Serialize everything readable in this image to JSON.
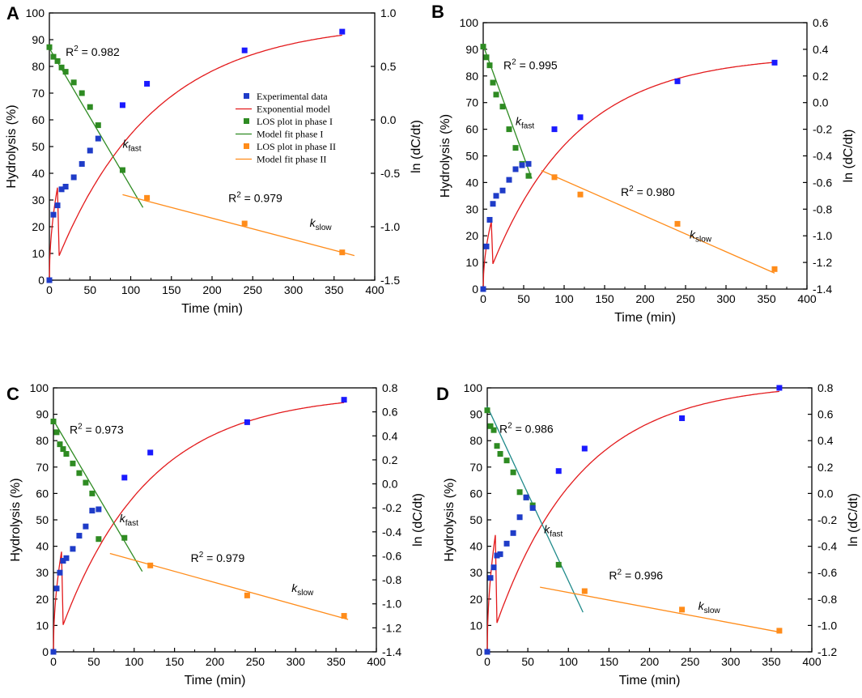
{
  "figure": {
    "colors": {
      "experimental": "#1f3cc8",
      "experimental_bright": "#1a1aff",
      "exponential_model": "#e31a1c",
      "los_phase1": "#2e8b22",
      "fit_phase1": "#2e8b22",
      "fit_phase1_teal": "#1f8a8a",
      "los_phase2": "#ff8c1a",
      "fit_phase2": "#ff8c1a"
    },
    "legend": [
      {
        "key": "experimental",
        "label": "Experimental data",
        "kind": "marker"
      },
      {
        "key": "exponential_model",
        "label": "Exponential model",
        "kind": "line"
      },
      {
        "key": "los_phase1",
        "label": "LOS plot in phase I",
        "kind": "marker"
      },
      {
        "key": "fit_phase1",
        "label": "Model fit phase I",
        "kind": "line"
      },
      {
        "key": "los_phase2",
        "label": "LOS plot in phase II",
        "kind": "marker"
      },
      {
        "key": "fit_phase2",
        "label": "Model fit phase II",
        "kind": "line"
      }
    ]
  },
  "chart_data": [
    {
      "panel": "A",
      "type": "scatter",
      "xlabel": "Time (min)",
      "ylabel": "Hydrolysis (%)",
      "y2label": "ln (dC/dt)",
      "xlim": [
        0,
        400
      ],
      "xticks": [
        0,
        50,
        100,
        150,
        200,
        250,
        300,
        350,
        400
      ],
      "ylim": [
        0,
        100
      ],
      "yticks": [
        0,
        10,
        20,
        30,
        40,
        50,
        60,
        70,
        80,
        90,
        100
      ],
      "y2lim": [
        -1.5,
        1.0
      ],
      "y2ticks": [
        -1.5,
        -1.0,
        -0.5,
        0.0,
        0.5,
        1.0
      ],
      "y2tick_labels": [
        "-1.5",
        "-1.0",
        "-0.5",
        "0.0",
        "0.5",
        "1.0"
      ],
      "experimental": {
        "x": [
          0,
          5,
          10,
          15,
          20,
          30,
          40,
          50,
          60,
          90,
          120,
          240,
          360
        ],
        "y": [
          0,
          24.5,
          28,
          34,
          35,
          38.5,
          43.5,
          48.5,
          53,
          65.5,
          73.5,
          86,
          93
        ]
      },
      "exponential_model": {
        "ymax": 96.5,
        "k": 0.00833
      },
      "los_phase1": {
        "x": [
          0,
          5,
          10,
          15,
          20,
          30,
          40,
          50,
          60,
          90
        ],
        "y": [
          0.68,
          0.59,
          0.55,
          0.49,
          0.45,
          0.35,
          0.25,
          0.12,
          -0.05,
          -0.47
        ]
      },
      "fit_phase1": {
        "x": [
          0,
          115
        ],
        "y": [
          0.67,
          -0.82
        ]
      },
      "los_phase2": {
        "x": [
          120,
          240,
          360
        ],
        "y": [
          -0.73,
          -0.97,
          -1.24
        ]
      },
      "fit_phase2": {
        "x": [
          90,
          375
        ],
        "y": [
          -0.7,
          -1.27
        ]
      },
      "r2_phase1": {
        "text": "R² = 0.982",
        "x": 20,
        "y": 0.6
      },
      "r2_phase2": {
        "text": "R² = 0.979",
        "x": 220,
        "y": -0.77
      },
      "k_fast": {
        "main": "k",
        "sub": "fast",
        "x": 90,
        "y": -0.26
      },
      "k_slow": {
        "main": "k",
        "sub": "slow",
        "x": 320,
        "y": -1.0
      },
      "fit1_color": "fit_phase1",
      "show_legend": true
    },
    {
      "panel": "B",
      "type": "scatter",
      "xlabel": "Time (min)",
      "ylabel": "Hydrolysis (%)",
      "y2label": "ln (dC/dt)",
      "xlim": [
        0,
        400
      ],
      "xticks": [
        0,
        50,
        100,
        150,
        200,
        250,
        300,
        350,
        400
      ],
      "ylim": [
        0,
        100
      ],
      "yticks": [
        0,
        10,
        20,
        30,
        40,
        50,
        60,
        70,
        80,
        90,
        100
      ],
      "y2lim": [
        -1.4,
        0.6
      ],
      "y2ticks": [
        -1.4,
        -1.2,
        -1.0,
        -0.8,
        -0.6,
        -0.4,
        -0.2,
        0.0,
        0.2,
        0.4,
        0.6
      ],
      "y2tick_labels": [
        "-1.4",
        "-1.2",
        "-1.0",
        "-0.8",
        "-0.6",
        "-0.4",
        "-0.2",
        "0.0",
        "0.2",
        "0.4",
        "0.6"
      ],
      "experimental": {
        "x": [
          0,
          4,
          8,
          12,
          16,
          24,
          32,
          40,
          48,
          56,
          88,
          120,
          240,
          360
        ],
        "y": [
          0,
          16,
          26,
          32,
          35,
          37,
          41,
          45,
          46.5,
          47,
          60,
          64.5,
          78,
          85
        ]
      },
      "exponential_model": {
        "ymax": 88,
        "k": 0.0095
      },
      "los_phase1": {
        "x": [
          0,
          4,
          8,
          12,
          16,
          24,
          32,
          40,
          48,
          56
        ],
        "y": [
          0.42,
          0.34,
          0.28,
          0.15,
          0.06,
          -0.03,
          -0.2,
          -0.34,
          -0.46,
          -0.55
        ]
      },
      "fit_phase1": {
        "x": [
          0,
          60
        ],
        "y": [
          0.43,
          -0.57
        ]
      },
      "los_phase2": {
        "x": [
          88,
          120,
          240,
          360
        ],
        "y": [
          -0.56,
          -0.69,
          -0.91,
          -1.25
        ]
      },
      "fit_phase2": {
        "x": [
          72,
          360
        ],
        "y": [
          -0.51,
          -1.28
        ]
      },
      "r2_phase1": {
        "text": "R² = 0.995",
        "x": 25,
        "y": 0.25
      },
      "r2_phase2": {
        "text": "R² = 0.980",
        "x": 170,
        "y": -0.7
      },
      "k_fast": {
        "main": "k",
        "sub": "fast",
        "x": 40,
        "y": -0.17
      },
      "k_slow": {
        "main": "k",
        "sub": "slow",
        "x": 255,
        "y": -1.02
      },
      "fit1_color": "fit_phase1",
      "show_legend": false
    },
    {
      "panel": "C",
      "type": "scatter",
      "xlabel": "Time (min)",
      "ylabel": "Hydrolysis (%)",
      "y2label": "ln (dC/dt)",
      "xlim": [
        0,
        400
      ],
      "xticks": [
        0,
        50,
        100,
        150,
        200,
        250,
        300,
        350,
        400
      ],
      "ylim": [
        0,
        100
      ],
      "yticks": [
        0,
        10,
        20,
        30,
        40,
        50,
        60,
        70,
        80,
        90,
        100
      ],
      "y2lim": [
        -1.4,
        0.8
      ],
      "y2ticks": [
        -1.4,
        -1.2,
        -1.0,
        -0.8,
        -0.6,
        -0.4,
        -0.2,
        0.0,
        0.2,
        0.4,
        0.6,
        0.8
      ],
      "y2tick_labels": [
        "-1.4",
        "-1.2",
        "-1.0",
        "-0.8",
        "-0.6",
        "-0.4",
        "-0.2",
        "0.0",
        "0.2",
        "0.4",
        "0.6",
        "0.8"
      ],
      "experimental": {
        "x": [
          0,
          4,
          8,
          12,
          16,
          24,
          32,
          40,
          48,
          56,
          88,
          120,
          240,
          360
        ],
        "y": [
          0,
          24,
          30,
          34.5,
          35.5,
          39,
          44,
          47.5,
          53.5,
          54,
          66,
          75.5,
          87,
          95.5
        ]
      },
      "exponential_model": {
        "ymax": 98,
        "k": 0.0092
      },
      "los_phase1": {
        "x": [
          0,
          4,
          8,
          12,
          16,
          24,
          32,
          40,
          48,
          56,
          88
        ],
        "y": [
          0.52,
          0.43,
          0.33,
          0.29,
          0.25,
          0.17,
          0.09,
          0.01,
          -0.08,
          -0.46,
          -0.45
        ]
      },
      "fit_phase1": {
        "x": [
          0,
          110
        ],
        "y": [
          0.53,
          -0.73
        ]
      },
      "los_phase2": {
        "x": [
          120,
          240,
          360
        ],
        "y": [
          -0.68,
          -0.93,
          -1.1
        ]
      },
      "fit_phase2": {
        "x": [
          70,
          365
        ],
        "y": [
          -0.58,
          -1.13
        ]
      },
      "r2_phase1": {
        "text": "R² = 0.973",
        "x": 20,
        "y": 0.42
      },
      "r2_phase2": {
        "text": "R² = 0.979",
        "x": 170,
        "y": -0.65
      },
      "k_fast": {
        "main": "k",
        "sub": "fast",
        "x": 82,
        "y": -0.32
      },
      "k_slow": {
        "main": "k",
        "sub": "slow",
        "x": 295,
        "y": -0.9
      },
      "fit1_color": "fit_phase1",
      "show_legend": false
    },
    {
      "panel": "D",
      "type": "scatter",
      "xlabel": "Time (min)",
      "ylabel": "Hydrolysis (%)",
      "y2label": "ln (dC/dt)",
      "xlim": [
        0,
        400
      ],
      "xticks": [
        0,
        50,
        100,
        150,
        200,
        250,
        300,
        350,
        400
      ],
      "ylim": [
        0,
        100
      ],
      "yticks": [
        0,
        10,
        20,
        30,
        40,
        50,
        60,
        70,
        80,
        90,
        100
      ],
      "y2lim": [
        -1.2,
        0.8
      ],
      "y2ticks": [
        -1.2,
        -1.0,
        -0.8,
        -0.6,
        -0.4,
        -0.2,
        0.0,
        0.2,
        0.4,
        0.6,
        0.8
      ],
      "y2tick_labels": [
        "-1.2",
        "-1.0",
        "-0.8",
        "-0.6",
        "-0.4",
        "-0.2",
        "0.0",
        "0.2",
        "0.4",
        "0.6",
        "0.8"
      ],
      "experimental": {
        "x": [
          0,
          4,
          8,
          12,
          16,
          24,
          32,
          40,
          48,
          56,
          88,
          120,
          240,
          360
        ],
        "y": [
          0,
          28,
          32,
          36.5,
          37,
          41,
          45,
          51,
          58.5,
          54.5,
          68.5,
          77,
          88.5,
          100
        ]
      },
      "exponential_model": {
        "ymax": 102,
        "k": 0.0095
      },
      "los_phase1": {
        "x": [
          0,
          4,
          8,
          12,
          16,
          24,
          32,
          40,
          48,
          56,
          88
        ],
        "y": [
          0.63,
          0.51,
          0.48,
          0.36,
          0.3,
          0.25,
          0.16,
          0.01,
          -0.03,
          -0.09,
          -0.54
        ]
      },
      "fit_phase1": {
        "x": [
          0,
          118
        ],
        "y": [
          0.66,
          -0.9
        ]
      },
      "los_phase2": {
        "x": [
          120,
          240,
          360
        ],
        "y": [
          -0.74,
          -0.88,
          -1.04
        ]
      },
      "fit_phase2": {
        "x": [
          65,
          360
        ],
        "y": [
          -0.71,
          -1.05
        ]
      },
      "r2_phase1": {
        "text": "R² = 0.986",
        "x": 15,
        "y": 0.46
      },
      "r2_phase2": {
        "text": "R² = 0.996",
        "x": 150,
        "y": -0.65
      },
      "k_fast": {
        "main": "k",
        "sub": "fast",
        "x": 70,
        "y": -0.3
      },
      "k_slow": {
        "main": "k",
        "sub": "slow",
        "x": 260,
        "y": -0.88
      },
      "fit1_color": "fit_phase1_teal",
      "show_legend": false
    }
  ]
}
